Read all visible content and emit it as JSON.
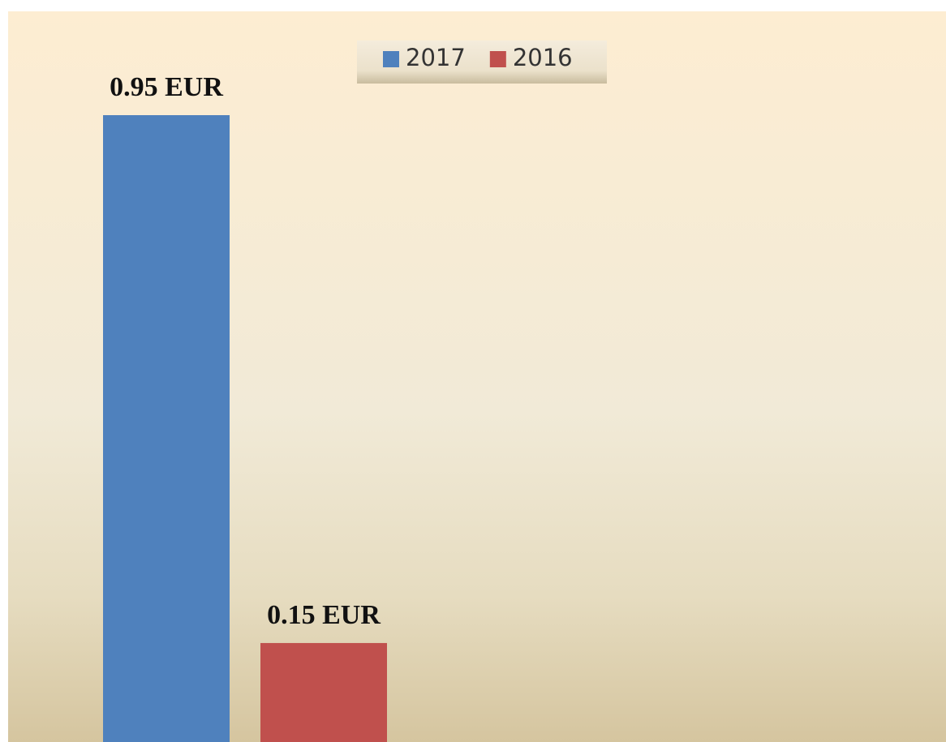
{
  "chart_data": {
    "type": "bar",
    "categories": [
      null
    ],
    "series": [
      {
        "name": "2017",
        "color": "#4f81bd",
        "values": [
          0.95
        ],
        "value_labels": [
          "0.95 EUR"
        ]
      },
      {
        "name": "2016",
        "color": "#c0504d",
        "values": [
          0.15
        ],
        "value_labels": [
          "0.15 EUR"
        ]
      }
    ],
    "legend": "top"
  }
}
